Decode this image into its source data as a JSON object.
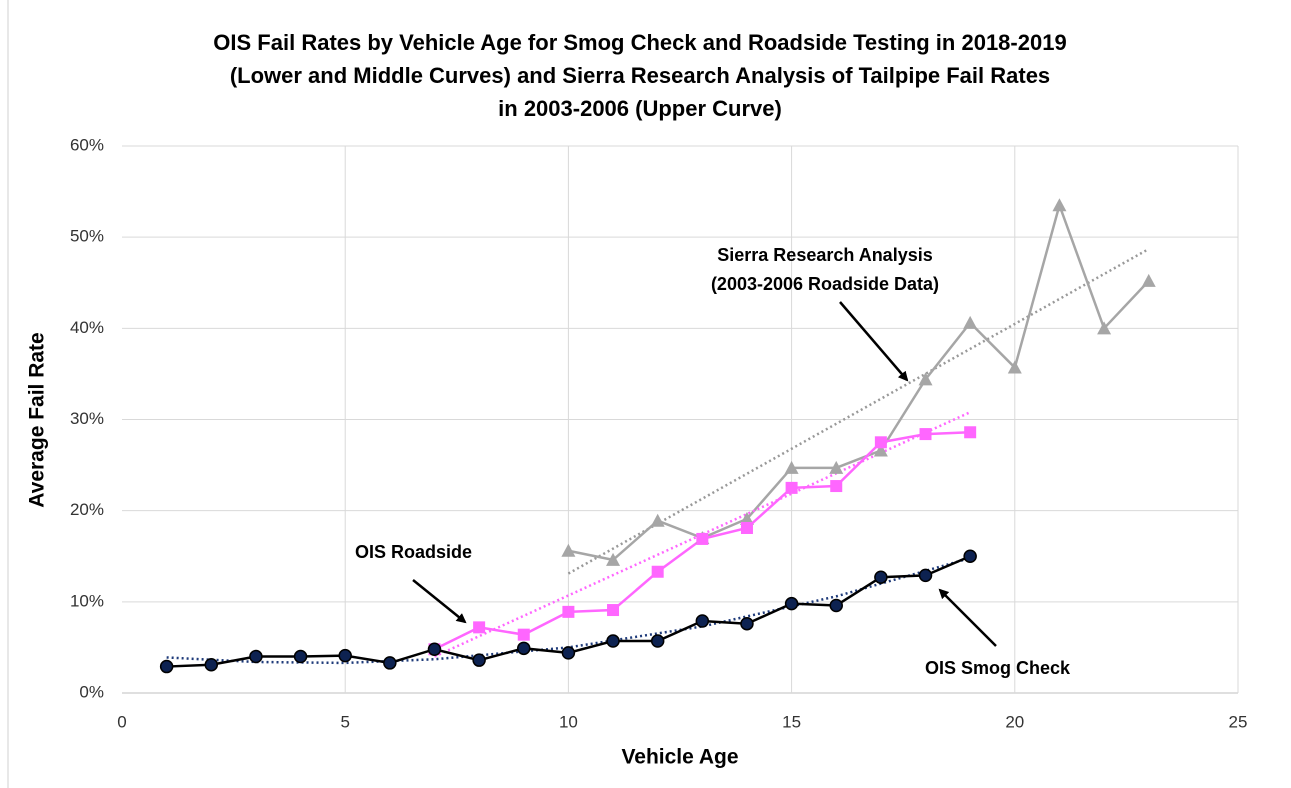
{
  "chart_data": {
    "type": "line",
    "title": [
      "OIS Fail Rates by Vehicle Age for Smog Check and Roadside Testing in 2018-2019",
      "(Lower and Middle Curves) and Sierra Research Analysis of Tailpipe Fail Rates",
      "in 2003-2006 (Upper Curve)"
    ],
    "x_label": "Vehicle Age",
    "y_label": "Average Fail Rate",
    "xlim": [
      0,
      25
    ],
    "xticks": [
      0,
      5,
      10,
      15,
      20,
      25
    ],
    "ylim": [
      0,
      60
    ],
    "yticks": [
      {
        "value": 0,
        "label": "0%"
      },
      {
        "value": 10,
        "label": "10%"
      },
      {
        "value": 20,
        "label": "20%"
      },
      {
        "value": 30,
        "label": "30%"
      },
      {
        "value": 40,
        "label": "40%"
      },
      {
        "value": 50,
        "label": "50%"
      },
      {
        "value": 60,
        "label": "60%"
      }
    ],
    "grid": true,
    "series": [
      {
        "marker": "triangle",
        "color": "#a6a6a6",
        "line_color": "#a6a6a6",
        "x": [
          10,
          11,
          12,
          13,
          14,
          15,
          16,
          17,
          18,
          19,
          20,
          21,
          22,
          23
        ],
        "values": [
          15.6,
          14.6,
          18.9,
          17.0,
          19.1,
          24.7,
          24.7,
          26.6,
          34.4,
          40.6,
          35.7,
          53.5,
          40.0,
          45.2
        ],
        "trend": {
          "color": "#999999",
          "x": [
            10,
            23
          ],
          "values": [
            13.1,
            48.7
          ]
        }
      },
      {
        "marker": "square",
        "color": "#ff66ff",
        "line_color": "#ff66ff",
        "x": [
          7,
          8,
          9,
          10,
          11,
          12,
          13,
          14,
          15,
          16,
          17,
          18,
          19
        ],
        "values": [
          4.8,
          7.2,
          6.4,
          8.9,
          9.1,
          13.3,
          16.9,
          18.1,
          22.5,
          22.7,
          27.5,
          28.4,
          28.6
        ],
        "trend": {
          "color": "#ff66ff",
          "x": [
            7,
            19
          ],
          "values": [
            4.0,
            30.8
          ]
        }
      },
      {
        "marker": "circle",
        "color": "#0d2251",
        "line_color": "#000000",
        "x": [
          1,
          2,
          3,
          4,
          5,
          6,
          7,
          8,
          9,
          10,
          11,
          12,
          13,
          14,
          15,
          16,
          17,
          18,
          19
        ],
        "values": [
          2.9,
          3.1,
          4.0,
          4.0,
          4.1,
          3.3,
          4.8,
          3.6,
          4.9,
          4.4,
          5.7,
          5.7,
          7.9,
          7.6,
          9.8,
          9.6,
          12.7,
          12.9,
          15.0
        ],
        "trend": {
          "color": "#1f3b7a",
          "x": [
            1,
            3,
            5,
            7,
            10,
            13,
            16,
            19
          ],
          "values": [
            3.9,
            3.4,
            3.3,
            3.7,
            5.0,
            7.3,
            10.6,
            14.8
          ]
        }
      }
    ],
    "annotations": [
      "Sierra Research Analysis",
      "(2003-2006 Roadside Data)",
      "OIS Roadside",
      "OIS Smog Check"
    ]
  }
}
